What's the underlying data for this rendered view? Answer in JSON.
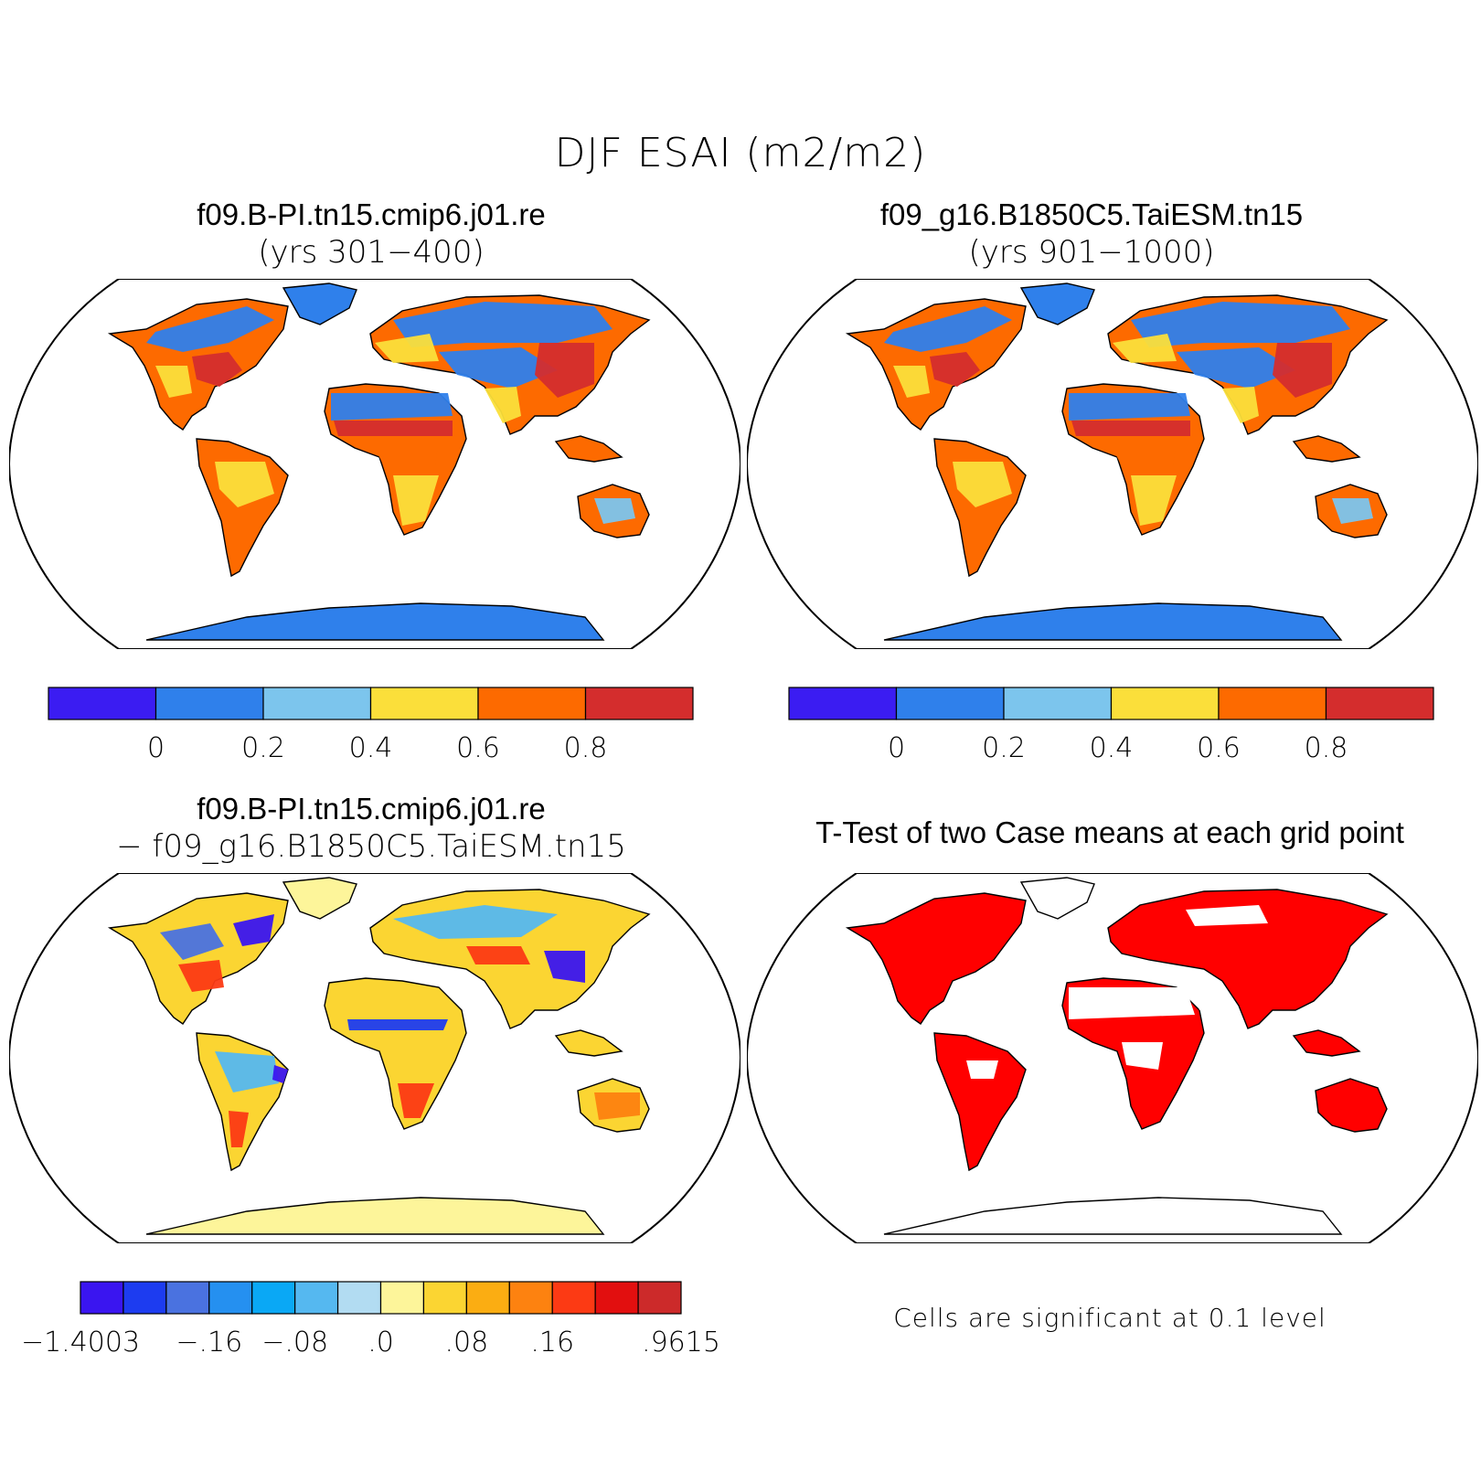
{
  "main_title": "DJF ESAI (m2/m2)",
  "panels": [
    {
      "title": "f09.B-PI.tn15.cmip6.j01.re",
      "subtitle": "(yrs 301−400)",
      "palette": [
        "#3b1cf2",
        "#2f80eb",
        "#7cc5ed",
        "#fbdf3a",
        "#fd6a00",
        "#d42d2d"
      ],
      "ticks": [
        "0",
        "0.2",
        "0.4",
        "0.6",
        "0.8"
      ]
    },
    {
      "title": "f09_g16.B1850C5.TaiESM.tn15",
      "subtitle": "(yrs 901−1000)",
      "palette": [
        "#3b1cf2",
        "#2f80eb",
        "#7cc5ed",
        "#fbdf3a",
        "#fd6a00",
        "#d42d2d"
      ],
      "ticks": [
        "0",
        "0.2",
        "0.4",
        "0.6",
        "0.8"
      ]
    },
    {
      "title": "f09.B-PI.tn15.cmip6.j01.re",
      "subtitle": "− f09_g16.B1850C5.TaiESM.tn15",
      "palette": [
        "#3a15f0",
        "#1d3cf0",
        "#4a72e0",
        "#2590f0",
        "#0aa8f5",
        "#55b8f0",
        "#b2dcf2",
        "#fdf59a",
        "#fbd532",
        "#fbad12",
        "#fd8210",
        "#fc3a14",
        "#e20f0f",
        "#cc2a2a"
      ],
      "ticks": [
        "−1.4003",
        "−.16",
        "−.08",
        ".0",
        ".08",
        ".16",
        ".9615"
      ]
    },
    {
      "title": "T-Test of two Case means at each grid point",
      "note": "Cells are significant at 0.1 level",
      "color": "#ff0000"
    }
  ],
  "colors": {
    "ocean": "#ffffff",
    "antarctica_mean": "#2f80eb",
    "antarctica_diff": "#fdf59a",
    "coast": "#000000"
  }
}
